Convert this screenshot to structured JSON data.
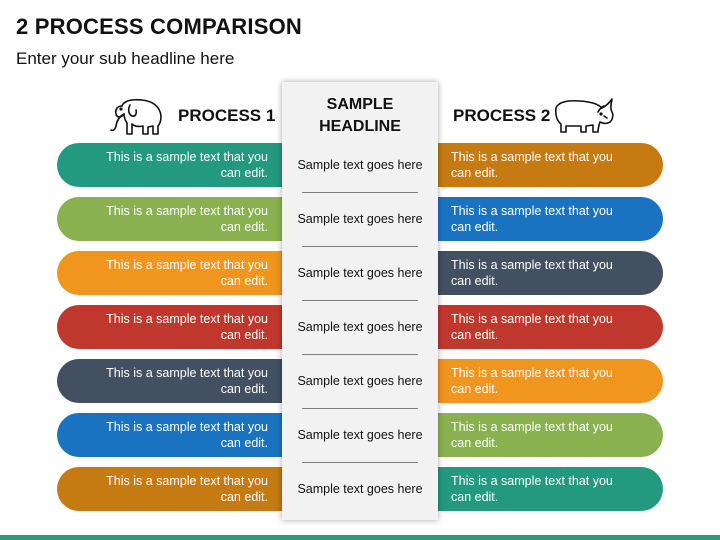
{
  "title": "2 PROCESS COMPARISON",
  "subtitle": "Enter your sub headline here",
  "process1": {
    "label": "PROCESS 1",
    "icon": "elephant-icon"
  },
  "process2": {
    "label": "PROCESS 2",
    "icon": "rhino-icon"
  },
  "center": {
    "headline_line1": "SAMPLE",
    "headline_line2": "HEADLINE",
    "items": [
      "Sample text goes here",
      "Sample text goes here",
      "Sample text goes here",
      "Sample text goes here",
      "Sample text goes here",
      "Sample text goes here",
      "Sample text goes here"
    ]
  },
  "left_rows": [
    {
      "line1": "This is a sample text that you",
      "line2": "can edit.",
      "color": "#23997f"
    },
    {
      "line1": "This is a sample text that you",
      "line2": "can edit.",
      "color": "#8ab14f"
    },
    {
      "line1": "This is a sample text that you",
      "line2": "can edit.",
      "color": "#f0961e"
    },
    {
      "line1": "This is a sample text that you",
      "line2": "can edit.",
      "color": "#c0372d"
    },
    {
      "line1": "This is a sample text that you",
      "line2": "can edit.",
      "color": "#435061"
    },
    {
      "line1": "This is a sample text that you",
      "line2": "can edit.",
      "color": "#1a73c0"
    },
    {
      "line1": "This is a sample text that you",
      "line2": "can edit.",
      "color": "#c57a12"
    }
  ],
  "right_rows": [
    {
      "line1": "This is a sample text that you",
      "line2": "can edit.",
      "color": "#c57a12"
    },
    {
      "line1": "This is a sample text that you",
      "line2": "can edit.",
      "color": "#1a73c0"
    },
    {
      "line1": "This is a sample text that you",
      "line2": "can edit.",
      "color": "#435061"
    },
    {
      "line1": "This is a sample text that you",
      "line2": "can edit.",
      "color": "#c0372d"
    },
    {
      "line1": "This is a sample text that you",
      "line2": "can edit.",
      "color": "#f0961e"
    },
    {
      "line1": "This is a sample text that you",
      "line2": "can edit.",
      "color": "#8ab14f"
    },
    {
      "line1": "This is a sample text that you",
      "line2": "can edit.",
      "color": "#23997f"
    }
  ],
  "bottom_bar_color": "#2b9b7a"
}
